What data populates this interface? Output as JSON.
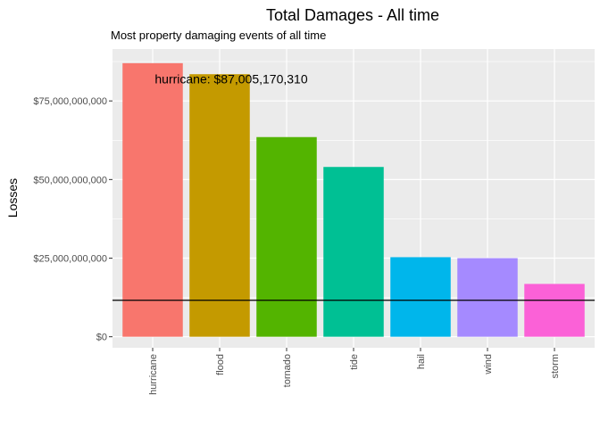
{
  "chart_data": {
    "type": "bar",
    "title": "Total Damages - All time",
    "subtitle": "Most property damaging events of all time",
    "xlabel": "",
    "ylabel": "Losses",
    "categories": [
      "hurricane",
      "flood",
      "tornado",
      "tide",
      "hail",
      "wind",
      "storm"
    ],
    "values": [
      87005170310,
      83500000000,
      63500000000,
      54000000000,
      25300000000,
      25000000000,
      16800000000
    ],
    "colors": [
      "#F8766D",
      "#C49A00",
      "#53B400",
      "#00C094",
      "#00B6EB",
      "#A58AFF",
      "#FB61D7"
    ],
    "ylim": [
      -3500000000,
      91500000000
    ],
    "yticks": [
      0,
      25000000000,
      50000000000,
      75000000000
    ],
    "ytick_labels": [
      "$0",
      "$25,000,000,000",
      "$50,000,000,000",
      "$75,000,000,000"
    ],
    "hline": 11600000000,
    "annotation": {
      "text": "hurricane: $87,005,170,310",
      "x": "hurricane",
      "y": 82000000000
    },
    "grid": true,
    "legend": "none",
    "panel_color": "#EBEBEB",
    "hline_color": "#000000"
  }
}
